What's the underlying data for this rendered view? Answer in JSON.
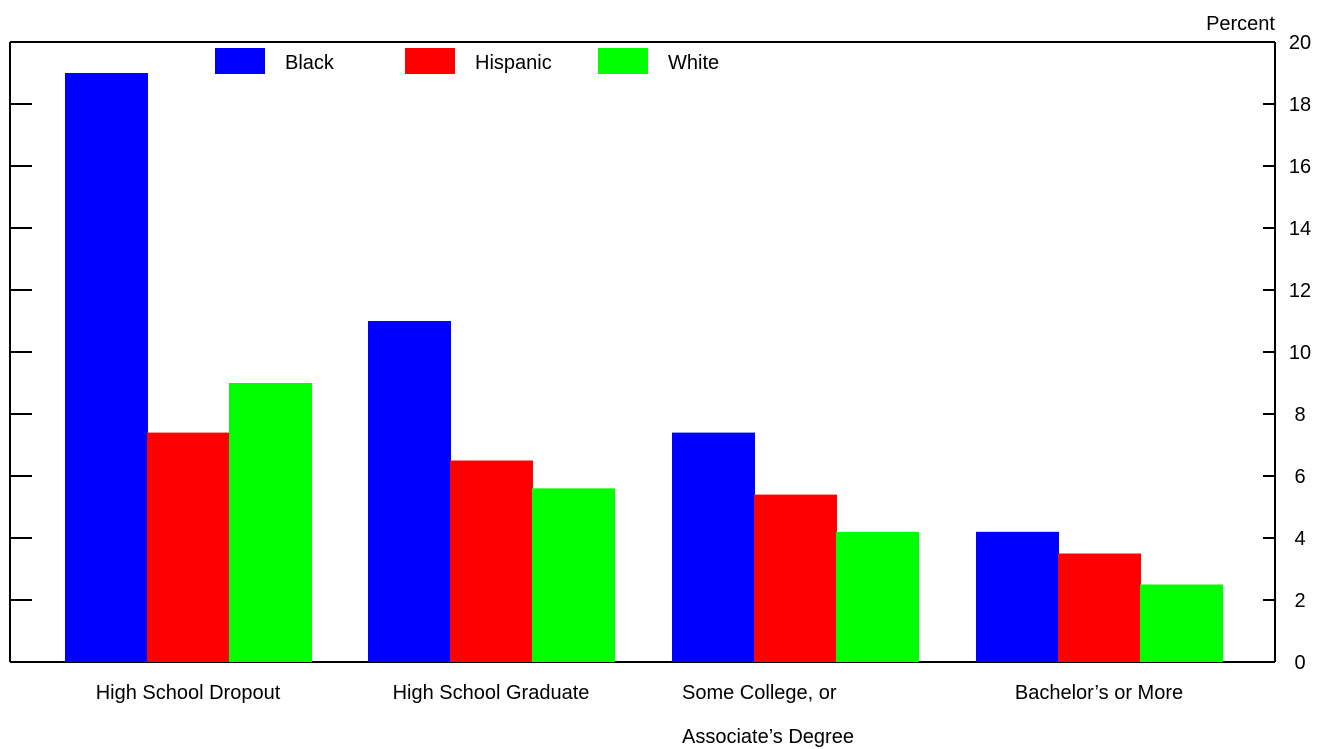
{
  "chart_data": {
    "type": "bar",
    "ylabel": "Percent",
    "ylim": [
      0,
      20
    ],
    "yticks": [
      0,
      2,
      4,
      6,
      8,
      10,
      12,
      14,
      16,
      18,
      20
    ],
    "y_axis_side": "right",
    "legend_position": "top-left",
    "categories": [
      [
        "High School Dropout"
      ],
      [
        "High School Graduate"
      ],
      [
        "Some College, or",
        "Associate’s Degree"
      ],
      [
        "Bachelor’s or More"
      ]
    ],
    "series": [
      {
        "name": "Black",
        "color": "#0000ff",
        "values": [
          19.0,
          11.0,
          7.4,
          4.2
        ]
      },
      {
        "name": "Hispanic",
        "color": "#ff0000",
        "values": [
          7.4,
          6.5,
          5.4,
          3.5
        ]
      },
      {
        "name": "White",
        "color": "#00ff00",
        "values": [
          9.0,
          5.6,
          4.2,
          2.5
        ]
      }
    ]
  }
}
